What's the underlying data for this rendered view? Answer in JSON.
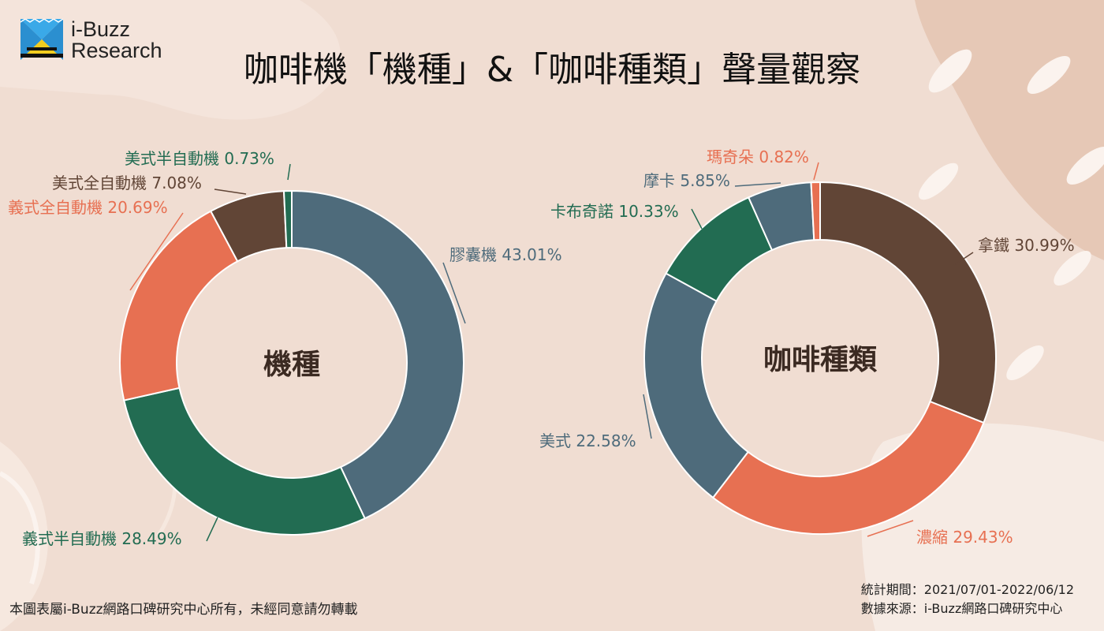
{
  "logo": {
    "line1": "i-Buzz",
    "line2": "Research"
  },
  "title": "咖啡機「機種」&「咖啡種類」聲量觀察",
  "chart_data": [
    {
      "type": "pie",
      "center_label": "機種",
      "slices": [
        {
          "label": "膠囊機",
          "value": 43.01,
          "value_text": "43.01%",
          "color": "#4e6b7b"
        },
        {
          "label": "義式半自動機",
          "value": 28.49,
          "value_text": "28.49%",
          "color": "#226c52"
        },
        {
          "label": "義式全自動機",
          "value": 20.69,
          "value_text": "20.69%",
          "color": "#e77052"
        },
        {
          "label": "美式全自動機",
          "value": 7.08,
          "value_text": "7.08%",
          "color": "#614536"
        },
        {
          "label": "美式半自動機",
          "value": 0.73,
          "value_text": "0.73%",
          "color": "#226c52"
        }
      ]
    },
    {
      "type": "pie",
      "center_label": "咖啡種類",
      "slices": [
        {
          "label": "拿鐵",
          "value": 30.99,
          "value_text": "30.99%",
          "color": "#614536"
        },
        {
          "label": "濃縮",
          "value": 29.43,
          "value_text": "29.43%",
          "color": "#e77052"
        },
        {
          "label": "美式",
          "value": 22.58,
          "value_text": "22.58%",
          "color": "#4e6b7b"
        },
        {
          "label": "卡布奇諾",
          "value": 10.33,
          "value_text": "10.33%",
          "color": "#226c52"
        },
        {
          "label": "摩卡",
          "value": 5.85,
          "value_text": "5.85%",
          "color": "#4e6b7b"
        },
        {
          "label": "瑪奇朵",
          "value": 0.82,
          "value_text": "0.82%",
          "color": "#e77052"
        }
      ]
    }
  ],
  "footer": {
    "copyright": "本圖表屬i-Buzz網路口碑研究中心所有，未經同意請勿轉載",
    "period": "統計期間：2021/07/01-2022/06/12",
    "source": "數據來源：i-Buzz網路口碑研究中心"
  }
}
